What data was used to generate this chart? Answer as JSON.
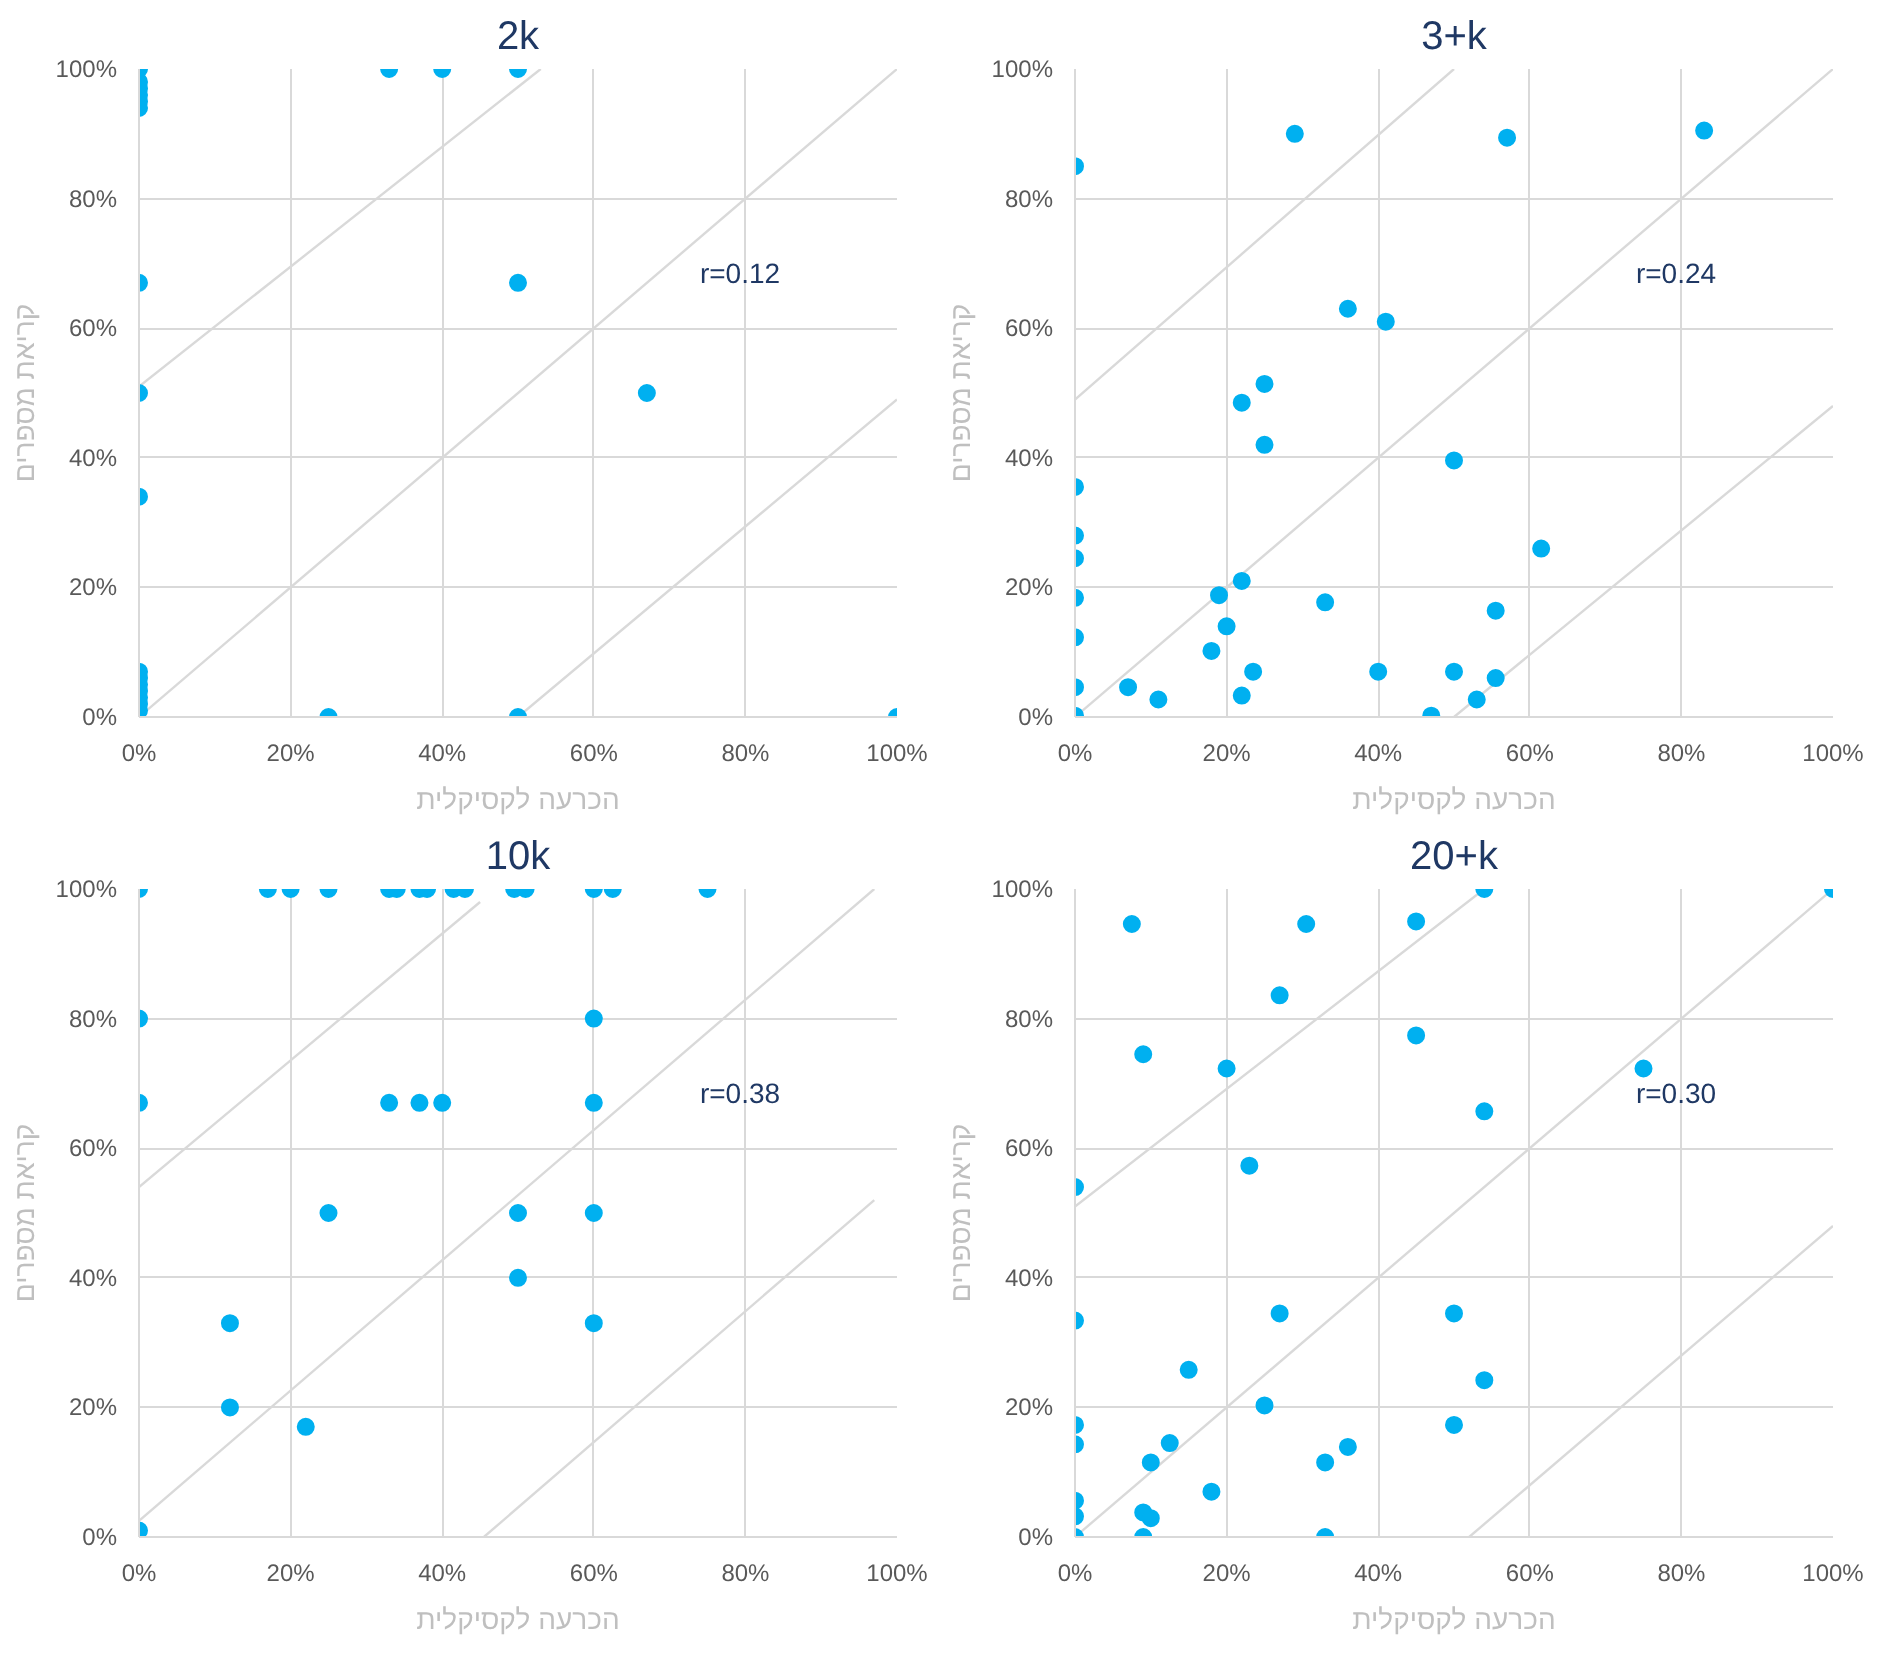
{
  "chart_data": [
    {
      "type": "scatter",
      "title": "2k",
      "xlabel": "הכרעה לקסיקלית",
      "ylabel": "קריאת מספרים",
      "annotations": [
        "r=0.12"
      ],
      "xlim": [
        0,
        100
      ],
      "ylim": [
        0,
        100
      ],
      "xticks": [
        {
          "value": 0,
          "label": "0%"
        },
        {
          "value": 20,
          "label": "20%"
        },
        {
          "value": 40,
          "label": "40%"
        },
        {
          "value": 60,
          "label": "60%"
        },
        {
          "value": 80,
          "label": "80%"
        },
        {
          "value": 100,
          "label": "100%"
        }
      ],
      "yticks": [
        {
          "value": 0,
          "label": "0%"
        },
        {
          "value": 20,
          "label": "20%"
        },
        {
          "value": 40,
          "label": "40%"
        },
        {
          "value": 60,
          "label": "60%"
        },
        {
          "value": 80,
          "label": "80%"
        },
        {
          "value": 100,
          "label": "100%"
        }
      ],
      "grid": true,
      "series": [
        {
          "type": "line",
          "color": "#d9d9d9",
          "x": [
            0,
            53
          ],
          "values": [
            51,
            100
          ]
        },
        {
          "type": "line",
          "color": "#d9d9d9",
          "x": [
            0,
            100
          ],
          "values": [
            0,
            100
          ]
        },
        {
          "type": "line",
          "color": "#d9d9d9",
          "x": [
            50,
            100
          ],
          "values": [
            0,
            49
          ]
        },
        {
          "marker": "circle",
          "color": "#00b0f0",
          "x": [
            0,
            0,
            0,
            0,
            0,
            0,
            0,
            0,
            0,
            0,
            0,
            0,
            0,
            0,
            0,
            0,
            33,
            40,
            50,
            50,
            67,
            25,
            50,
            100
          ],
          "values": [
            100,
            98,
            97,
            96,
            95,
            67,
            50,
            34,
            7,
            6,
            5,
            4,
            3,
            2,
            1,
            94,
            100,
            100,
            100,
            67,
            50,
            0,
            0,
            0
          ]
        }
      ]
    },
    {
      "type": "scatter",
      "title": "3+k",
      "xlabel": "הכרעה לקסיקלית",
      "ylabel": "קריאת מספרים",
      "annotations": [
        "r=0.24"
      ],
      "xlim": [
        0,
        100
      ],
      "ylim": [
        0,
        100
      ],
      "xticks": [
        {
          "value": 0,
          "label": "0%"
        },
        {
          "value": 20,
          "label": "20%"
        },
        {
          "value": 40,
          "label": "40%"
        },
        {
          "value": 60,
          "label": "60%"
        },
        {
          "value": 80,
          "label": "80%"
        },
        {
          "value": 100,
          "label": "100%"
        }
      ],
      "yticks": [
        {
          "value": 0,
          "label": "0%"
        },
        {
          "value": 20,
          "label": "20%"
        },
        {
          "value": 40,
          "label": "40%"
        },
        {
          "value": 60,
          "label": "60%"
        },
        {
          "value": 80,
          "label": "80%"
        },
        {
          "value": 100,
          "label": "100%"
        }
      ],
      "grid": true,
      "series": [
        {
          "type": "line",
          "color": "#d9d9d9",
          "x": [
            0,
            50
          ],
          "values": [
            49,
            100
          ]
        },
        {
          "type": "line",
          "color": "#d9d9d9",
          "x": [
            0,
            100
          ],
          "values": [
            0,
            100
          ]
        },
        {
          "type": "line",
          "color": "#d9d9d9",
          "x": [
            50,
            100
          ],
          "values": [
            0,
            48
          ]
        },
        {
          "marker": "circle",
          "color": "#00b0f0",
          "x": [
            0,
            29,
            57,
            83,
            36,
            41,
            25,
            22,
            25,
            50,
            0,
            0,
            0,
            0,
            0,
            0,
            0,
            7,
            11,
            19,
            22,
            20,
            18,
            23.5,
            22,
            33,
            40,
            50,
            61.5,
            55.5,
            55.5,
            53,
            47
          ],
          "values": [
            85,
            90,
            89.4,
            90.5,
            63,
            61,
            51.4,
            48.5,
            42,
            39.6,
            35.5,
            28,
            24.5,
            18.4,
            12.3,
            4.6,
            0.2,
            4.6,
            2.7,
            18.8,
            21,
            14,
            10.2,
            7,
            3.3,
            17.7,
            7,
            7,
            26,
            16.4,
            6,
            2.7,
            0.2
          ]
        }
      ]
    },
    {
      "type": "scatter",
      "title": "10k",
      "xlabel": "הכרעה לקסיקלית",
      "ylabel": "קריאת מספרים",
      "annotations": [
        "r=0.38"
      ],
      "xlim": [
        0,
        100
      ],
      "ylim": [
        0,
        100
      ],
      "xticks": [
        {
          "value": 0,
          "label": "0%"
        },
        {
          "value": 20,
          "label": "20%"
        },
        {
          "value": 40,
          "label": "40%"
        },
        {
          "value": 60,
          "label": "60%"
        },
        {
          "value": 80,
          "label": "80%"
        },
        {
          "value": 100,
          "label": "100%"
        }
      ],
      "yticks": [
        {
          "value": 0,
          "label": "0%"
        },
        {
          "value": 20,
          "label": "20%"
        },
        {
          "value": 40,
          "label": "40%"
        },
        {
          "value": 60,
          "label": "60%"
        },
        {
          "value": 80,
          "label": "80%"
        },
        {
          "value": 100,
          "label": "100%"
        }
      ],
      "grid": true,
      "series": [
        {
          "type": "line",
          "color": "#d9d9d9",
          "x": [
            0,
            45
          ],
          "values": [
            54,
            98
          ]
        },
        {
          "type": "line",
          "color": "#d9d9d9",
          "x": [
            0,
            97
          ],
          "values": [
            2.5,
            100
          ]
        },
        {
          "type": "line",
          "color": "#d9d9d9",
          "x": [
            45.5,
            97
          ],
          "values": [
            0,
            52
          ]
        },
        {
          "marker": "circle",
          "color": "#00b0f0",
          "x": [
            0,
            17,
            20,
            25,
            33,
            34,
            37,
            38,
            41.5,
            43,
            49.5,
            51,
            60,
            62.5,
            75,
            0,
            0,
            60,
            33,
            37,
            40,
            60,
            25,
            50,
            60,
            50,
            12,
            60,
            12,
            22,
            0
          ],
          "values": [
            100,
            100,
            100,
            100,
            100,
            100,
            100,
            100,
            100,
            100,
            100,
            100,
            100,
            100,
            100,
            80,
            67,
            80,
            67,
            67,
            67,
            67,
            50,
            50,
            50,
            40,
            33,
            33,
            20,
            17,
            1
          ]
        }
      ]
    },
    {
      "type": "scatter",
      "title": "20+k",
      "xlabel": "הכרעה לקסיקלית",
      "ylabel": "קריאת מספרים",
      "annotations": [
        "r=0.30"
      ],
      "xlim": [
        0,
        100
      ],
      "ylim": [
        0,
        100
      ],
      "xticks": [
        {
          "value": 0,
          "label": "0%"
        },
        {
          "value": 20,
          "label": "20%"
        },
        {
          "value": 40,
          "label": "40%"
        },
        {
          "value": 60,
          "label": "60%"
        },
        {
          "value": 80,
          "label": "80%"
        },
        {
          "value": 100,
          "label": "100%"
        }
      ],
      "yticks": [
        {
          "value": 0,
          "label": "0%"
        },
        {
          "value": 20,
          "label": "20%"
        },
        {
          "value": 40,
          "label": "40%"
        },
        {
          "value": 60,
          "label": "60%"
        },
        {
          "value": 80,
          "label": "80%"
        },
        {
          "value": 100,
          "label": "100%"
        }
      ],
      "grid": true,
      "series": [
        {
          "type": "line",
          "color": "#d9d9d9",
          "x": [
            0,
            54
          ],
          "values": [
            51,
            100
          ]
        },
        {
          "type": "line",
          "color": "#d9d9d9",
          "x": [
            0,
            100
          ],
          "values": [
            0,
            100
          ]
        },
        {
          "type": "line",
          "color": "#d9d9d9",
          "x": [
            52,
            100
          ],
          "values": [
            0,
            48
          ]
        },
        {
          "marker": "circle",
          "color": "#00b0f0",
          "x": [
            54,
            100,
            7.5,
            30.5,
            45,
            27,
            45,
            9,
            20,
            75,
            54,
            23,
            0,
            0,
            27,
            50,
            15,
            54,
            25,
            0,
            50,
            0,
            12.5,
            36,
            10,
            33,
            18,
            0,
            0,
            9,
            10,
            0,
            9,
            33
          ],
          "values": [
            100,
            100,
            94.6,
            94.6,
            95,
            83.6,
            77.4,
            74.5,
            72.3,
            72.3,
            65.7,
            57.3,
            54,
            33.4,
            34.5,
            34.5,
            25.8,
            24.2,
            20.3,
            17.3,
            17.3,
            14.3,
            14.5,
            13.9,
            11.5,
            11.5,
            7,
            5.6,
            3.2,
            3.8,
            2.9,
            0,
            0,
            0
          ]
        }
      ]
    }
  ]
}
